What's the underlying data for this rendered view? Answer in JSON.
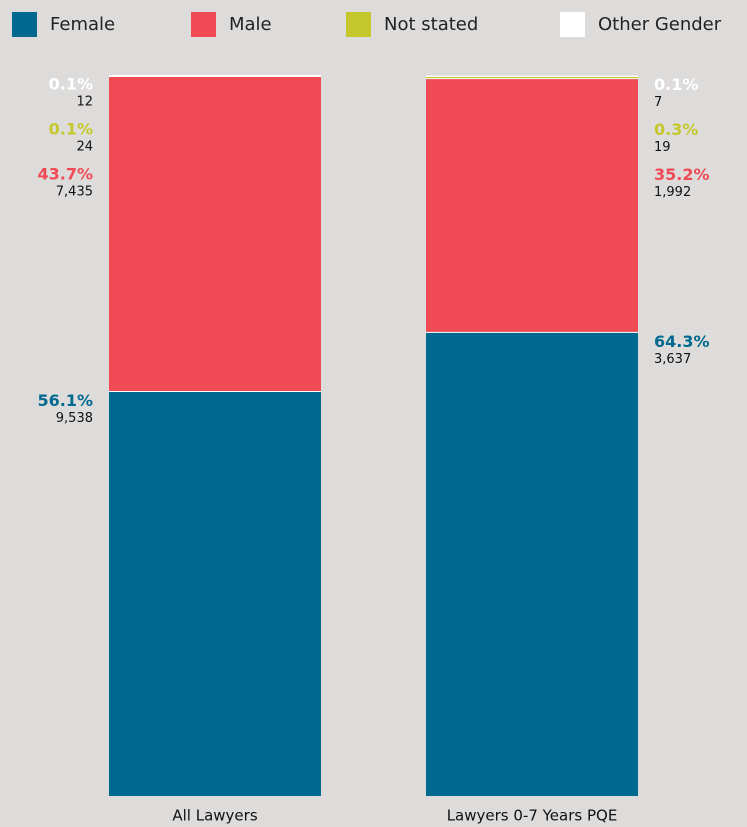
{
  "chart_data": {
    "type": "bar",
    "stacked": true,
    "categories": [
      "All Lawyers",
      "Lawyers 0-7 Years PQE"
    ],
    "ylim": [
      0,
      100
    ],
    "series": [
      {
        "name": "Female",
        "color": "#006990",
        "values": [
          56.1,
          64.3
        ],
        "value_labels": [
          "56.1%",
          "64.3%"
        ],
        "counts": [
          "9,538",
          "3,637"
        ]
      },
      {
        "name": "Male",
        "color": "#f04b55",
        "values": [
          43.7,
          35.2
        ],
        "value_labels": [
          "43.7%",
          "35.2%"
        ],
        "counts": [
          "7,435",
          "1,992"
        ]
      },
      {
        "name": "Not stated",
        "color": "#c5c82c",
        "values": [
          0.1,
          0.3
        ],
        "value_labels": [
          "0.1%",
          "0.3%"
        ],
        "counts": [
          "24",
          "19"
        ]
      },
      {
        "name": "Other Gender",
        "color": "#ffffff",
        "values": [
          0.1,
          0.1
        ],
        "value_labels": [
          "0.1%",
          "0.1%"
        ],
        "counts": [
          "12",
          "7"
        ]
      }
    ]
  }
}
